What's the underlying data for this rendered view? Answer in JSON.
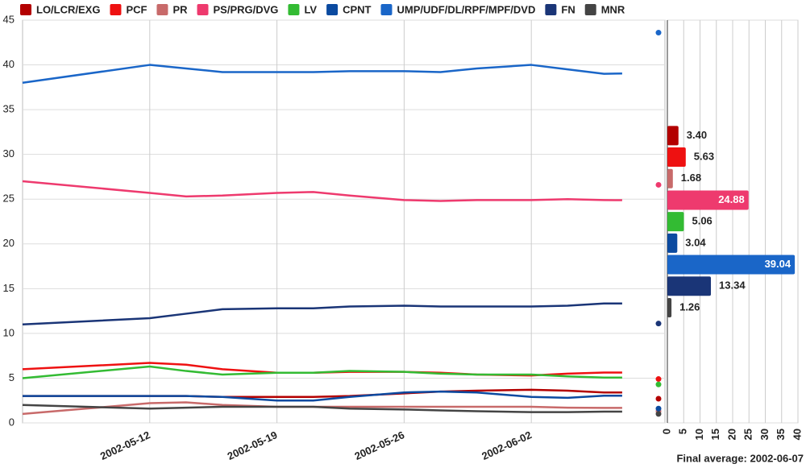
{
  "chart_data": [
    {
      "type": "line",
      "x": [
        "2002-05-05",
        "2002-05-12",
        "2002-05-14",
        "2002-05-16",
        "2002-05-19",
        "2002-05-21",
        "2002-05-23",
        "2002-05-26",
        "2002-05-28",
        "2002-05-30",
        "2002-06-02",
        "2002-06-04",
        "2002-06-06",
        "2002-06-07"
      ],
      "xlim": [
        "2002-05-05",
        "2002-06-09"
      ],
      "xticks": [
        "2002-05-12",
        "2002-05-19",
        "2002-05-26",
        "2002-06-02"
      ],
      "ylim": [
        0,
        45
      ],
      "yticks": [
        0,
        5,
        10,
        15,
        20,
        25,
        30,
        35,
        40,
        45
      ],
      "grid": true,
      "result_x": "2002-06-09",
      "series": [
        {
          "name": "LO/LCR/EXG",
          "color": "#b30000",
          "values": [
            3,
            3,
            3,
            2.9,
            2.9,
            2.9,
            3.0,
            3.3,
            3.5,
            3.6,
            3.7,
            3.6,
            3.4,
            3.4
          ],
          "result": 2.7
        },
        {
          "name": "PCF",
          "color": "#ee1111",
          "values": [
            6,
            6.7,
            6.5,
            6.0,
            5.6,
            5.6,
            5.7,
            5.7,
            5.6,
            5.4,
            5.3,
            5.5,
            5.63,
            5.63
          ],
          "result": 4.9
        },
        {
          "name": "PR",
          "color": "#c86a6a",
          "values": [
            1,
            2.2,
            2.3,
            2.0,
            1.8,
            1.8,
            1.8,
            1.8,
            1.8,
            1.8,
            1.8,
            1.7,
            1.68,
            1.68
          ],
          "result": 1.3
        },
        {
          "name": "PS/PRG/DVG",
          "color": "#ee3a6e",
          "values": [
            27,
            25.7,
            25.3,
            25.4,
            25.7,
            25.8,
            25.4,
            24.9,
            24.8,
            24.9,
            24.9,
            25.0,
            24.9,
            24.88
          ],
          "result": 26.6
        },
        {
          "name": "LV",
          "color": "#33bb33",
          "values": [
            5,
            6.3,
            5.8,
            5.4,
            5.6,
            5.6,
            5.8,
            5.7,
            5.5,
            5.4,
            5.4,
            5.2,
            5.06,
            5.06
          ],
          "result": 4.3
        },
        {
          "name": "CPNT",
          "color": "#0b4aa0",
          "values": [
            3,
            3,
            3,
            2.9,
            2.5,
            2.5,
            2.9,
            3.4,
            3.5,
            3.4,
            2.9,
            2.8,
            3.04,
            3.04
          ],
          "result": 1.6
        },
        {
          "name": "UMP/UDF/DL/RPF/MPF/DVD",
          "color": "#1a66c8",
          "values": [
            38,
            40,
            39.6,
            39.2,
            39.2,
            39.2,
            39.3,
            39.3,
            39.2,
            39.6,
            40,
            39.5,
            39.0,
            39.04
          ],
          "result": 43.6
        },
        {
          "name": "FN",
          "color": "#1a3577",
          "values": [
            11,
            11.7,
            12.2,
            12.7,
            12.8,
            12.8,
            13.0,
            13.1,
            13.0,
            13.0,
            13.0,
            13.1,
            13.34,
            13.34
          ],
          "result": 11.1
        },
        {
          "name": "MNR",
          "color": "#444444",
          "values": [
            2,
            1.6,
            1.7,
            1.8,
            1.8,
            1.8,
            1.6,
            1.5,
            1.4,
            1.3,
            1.2,
            1.2,
            1.26,
            1.26
          ],
          "result": 1.0
        }
      ]
    },
    {
      "type": "hbar",
      "xlabel": "Final average: 2002-06-07",
      "xlim": [
        0,
        40
      ],
      "xticks": [
        0,
        5,
        10,
        15,
        20,
        25,
        30,
        35,
        40
      ],
      "values": [
        3.4,
        5.63,
        1.68,
        24.88,
        5.06,
        3.04,
        39.04,
        13.34,
        1.26
      ],
      "value_labels": [
        "3.40",
        "5.63",
        "1.68",
        "24.88",
        "5.06",
        "3.04",
        "39.04",
        "13.34",
        "1.26"
      ],
      "colors": [
        "#b30000",
        "#ee1111",
        "#c86a6a",
        "#ee3a6e",
        "#33bb33",
        "#0b4aa0",
        "#1a66c8",
        "#1a3577",
        "#444444"
      ]
    }
  ]
}
